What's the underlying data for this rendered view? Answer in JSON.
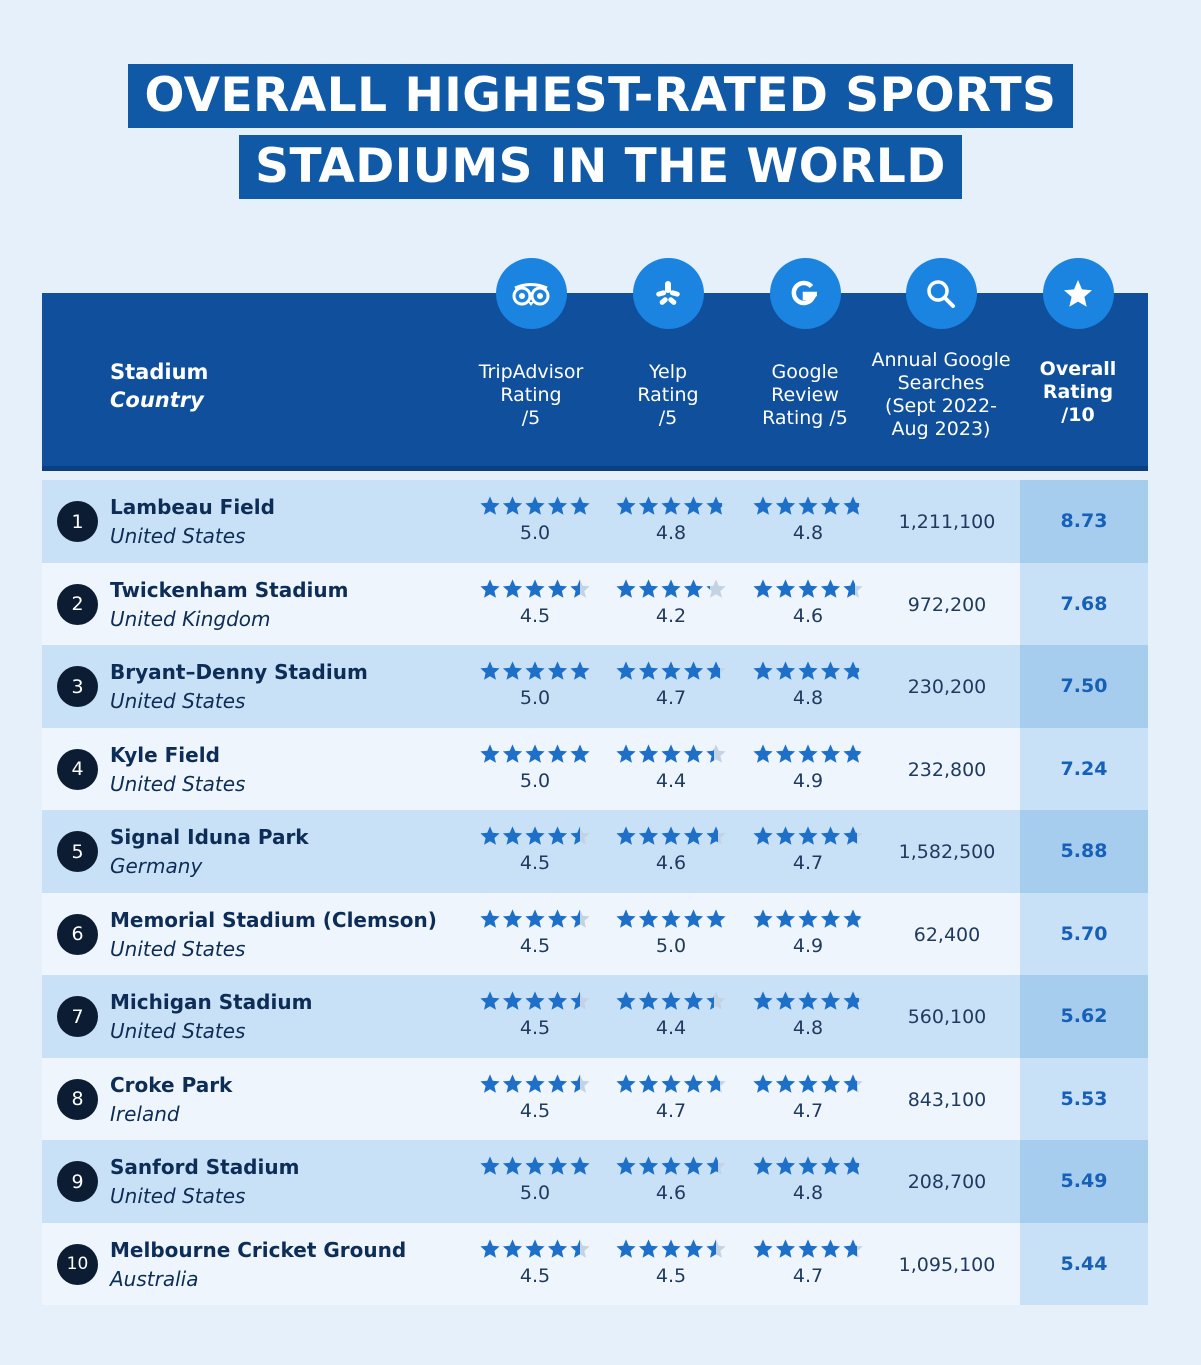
{
  "title": {
    "line1": "OVERALL HIGHEST-RATED SPORTS",
    "line2": "STADIUMS IN THE WORLD"
  },
  "colors": {
    "title_bg": "#0f59a6",
    "header_bg": "#0f4f9c",
    "icon_circle": "#1a84e0",
    "star": "#1d6fc8",
    "star_empty": "#c4d3e3",
    "row_odd": "#c9e1f6",
    "row_even": "#eef5fc",
    "overall_text": "#1760b8"
  },
  "chart_data": {
    "type": "table",
    "columns": [
      {
        "key": "stadium",
        "label_line1": "Stadium",
        "label_line2": "Country"
      },
      {
        "key": "tripadvisor",
        "icon": "tripadvisor-owl-icon",
        "lines": [
          "TripAdvisor",
          "Rating",
          "/5"
        ]
      },
      {
        "key": "yelp",
        "icon": "yelp-burst-icon",
        "lines": [
          "Yelp",
          "Rating",
          "/5"
        ]
      },
      {
        "key": "google",
        "icon": "google-g-icon",
        "lines": [
          "Google",
          "Review",
          "Rating /5"
        ]
      },
      {
        "key": "searches",
        "icon": "search-icon",
        "lines": [
          "Annual Google",
          "Searches",
          "(Sept 2022-",
          "Aug 2023)"
        ]
      },
      {
        "key": "overall",
        "icon": "star-icon",
        "lines": [
          "Overall",
          "Rating",
          "/10"
        ]
      }
    ],
    "rows": [
      {
        "rank": "1",
        "stadium": "Lambeau Field",
        "country": "United States",
        "tripadvisor": "5.0",
        "yelp": "4.8",
        "google": "4.8",
        "searches": "1,211,100",
        "overall": "8.73"
      },
      {
        "rank": "2",
        "stadium": "Twickenham Stadium",
        "country": "United Kingdom",
        "tripadvisor": "4.5",
        "yelp": "4.2",
        "google": "4.6",
        "searches": "972,200",
        "overall": "7.68"
      },
      {
        "rank": "3",
        "stadium": "Bryant–Denny Stadium",
        "country": "United States",
        "tripadvisor": "5.0",
        "yelp": "4.7",
        "google": "4.8",
        "searches": "230,200",
        "overall": "7.50"
      },
      {
        "rank": "4",
        "stadium": "Kyle Field",
        "country": "United States",
        "tripadvisor": "5.0",
        "yelp": "4.4",
        "google": "4.9",
        "searches": "232,800",
        "overall": "7.24"
      },
      {
        "rank": "5",
        "stadium": "Signal Iduna Park",
        "country": "Germany",
        "tripadvisor": "4.5",
        "yelp": "4.6",
        "google": "4.7",
        "searches": "1,582,500",
        "overall": "5.88"
      },
      {
        "rank": "6",
        "stadium": "Memorial Stadium (Clemson)",
        "country": "United States",
        "tripadvisor": "4.5",
        "yelp": "5.0",
        "google": "4.9",
        "searches": "62,400",
        "overall": "5.70"
      },
      {
        "rank": "7",
        "stadium": "Michigan Stadium",
        "country": "United States",
        "tripadvisor": "4.5",
        "yelp": "4.4",
        "google": "4.8",
        "searches": "560,100",
        "overall": "5.62"
      },
      {
        "rank": "8",
        "stadium": "Croke Park",
        "country": "Ireland",
        "tripadvisor": "4.5",
        "yelp": "4.7",
        "google": "4.7",
        "searches": "843,100",
        "overall": "5.53"
      },
      {
        "rank": "9",
        "stadium": "Sanford Stadium",
        "country": "United States",
        "tripadvisor": "5.0",
        "yelp": "4.6",
        "google": "4.8",
        "searches": "208,700",
        "overall": "5.49"
      },
      {
        "rank": "10",
        "stadium": "Melbourne Cricket Ground",
        "country": "Australia",
        "tripadvisor": "4.5",
        "yelp": "4.5",
        "google": "4.7",
        "searches": "1,095,100",
        "overall": "5.44"
      }
    ]
  }
}
